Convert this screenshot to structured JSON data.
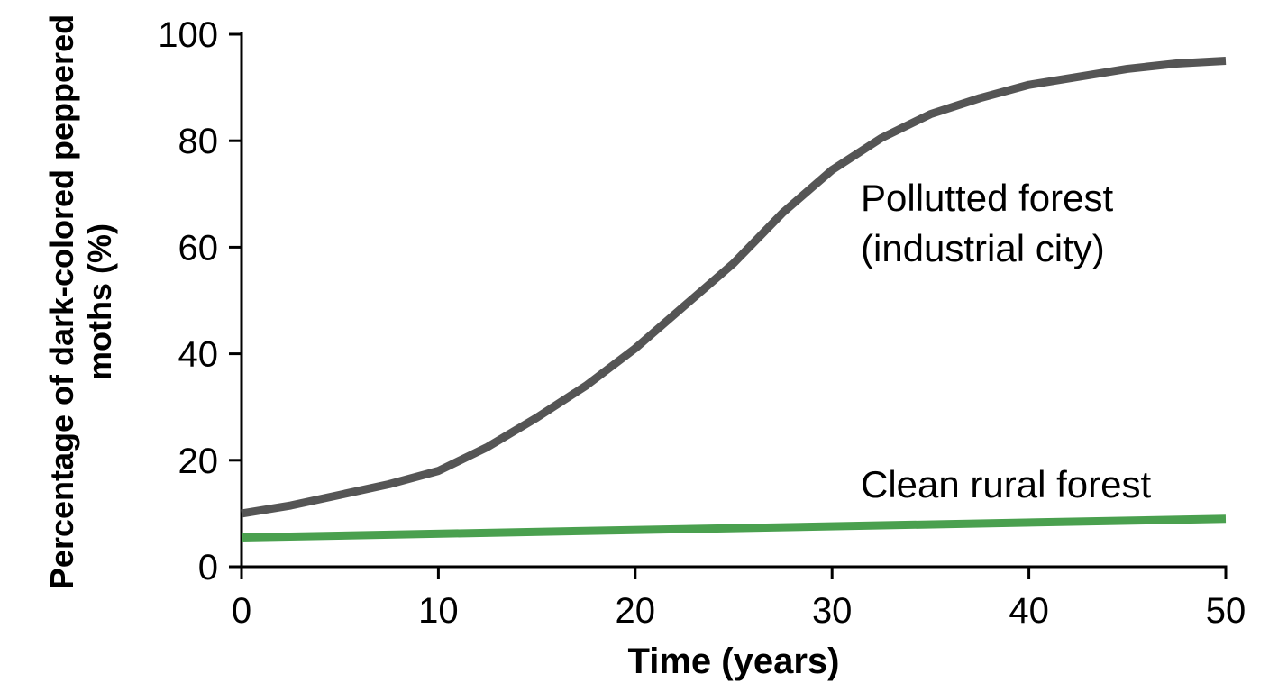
{
  "chart_data": {
    "type": "line",
    "xlabel": "Time (years)",
    "ylabel": "Percentage of dark-colored peppered moths (%)",
    "xlim": [
      0,
      50
    ],
    "xticks": [
      0,
      10,
      20,
      30,
      40,
      50
    ],
    "ylim": [
      0,
      100
    ],
    "yticks": [
      0,
      20,
      40,
      60,
      80,
      100
    ],
    "grid": false,
    "series": [
      {
        "name": "Pollutted forest (industrial city)",
        "color": "#555555",
        "x": [
          0,
          2.5,
          5,
          7.5,
          10,
          12.5,
          15,
          17.5,
          20,
          22.5,
          25,
          27.5,
          30,
          32.5,
          35,
          37.5,
          40,
          42.5,
          45,
          47.5,
          50
        ],
        "values": [
          10,
          11.5,
          13.5,
          15.5,
          18,
          22.5,
          28,
          34,
          41,
          49,
          57,
          66.5,
          74.5,
          80.5,
          85,
          88,
          90.5,
          92,
          93.5,
          94.5,
          95
        ]
      },
      {
        "name": "Clean rural forest",
        "color": "#4aa04f",
        "x": [
          0,
          50
        ],
        "values": [
          5.5,
          9
        ]
      }
    ]
  }
}
